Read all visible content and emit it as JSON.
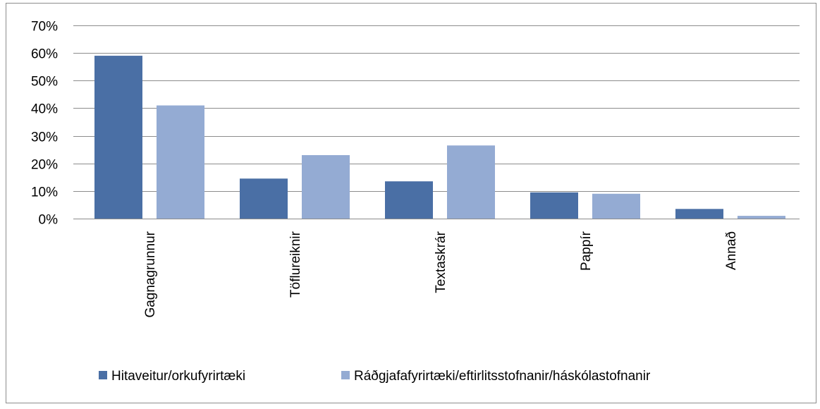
{
  "chart_data": {
    "type": "bar",
    "title": "",
    "xlabel": "",
    "ylabel": "",
    "categories": [
      "Gagnagrunnur",
      "Töflureiknir",
      "Textaskrár",
      "Pappír",
      "Annað"
    ],
    "series": [
      {
        "name": "Hitaveitur/orkufyrirtæki",
        "color": "#4A6FA5",
        "values": [
          0.59,
          0.145,
          0.135,
          0.095,
          0.035
        ]
      },
      {
        "name": "Ráðgjafafyrirtæki/eftirlitsstofnanir/háskólastofnanir",
        "color": "#94ABD3",
        "values": [
          0.41,
          0.23,
          0.265,
          0.09,
          0.01
        ]
      }
    ],
    "ylim": [
      0,
      0.7
    ],
    "yticks": [
      0,
      0.1,
      0.2,
      0.3,
      0.4,
      0.5,
      0.6,
      0.7
    ],
    "ytick_labels": [
      "0%",
      "10%",
      "20%",
      "30%",
      "40%",
      "50%",
      "60%",
      "70%"
    ],
    "grid": true,
    "legend_position": "bottom",
    "gridline_color": "#8c8c8c"
  }
}
